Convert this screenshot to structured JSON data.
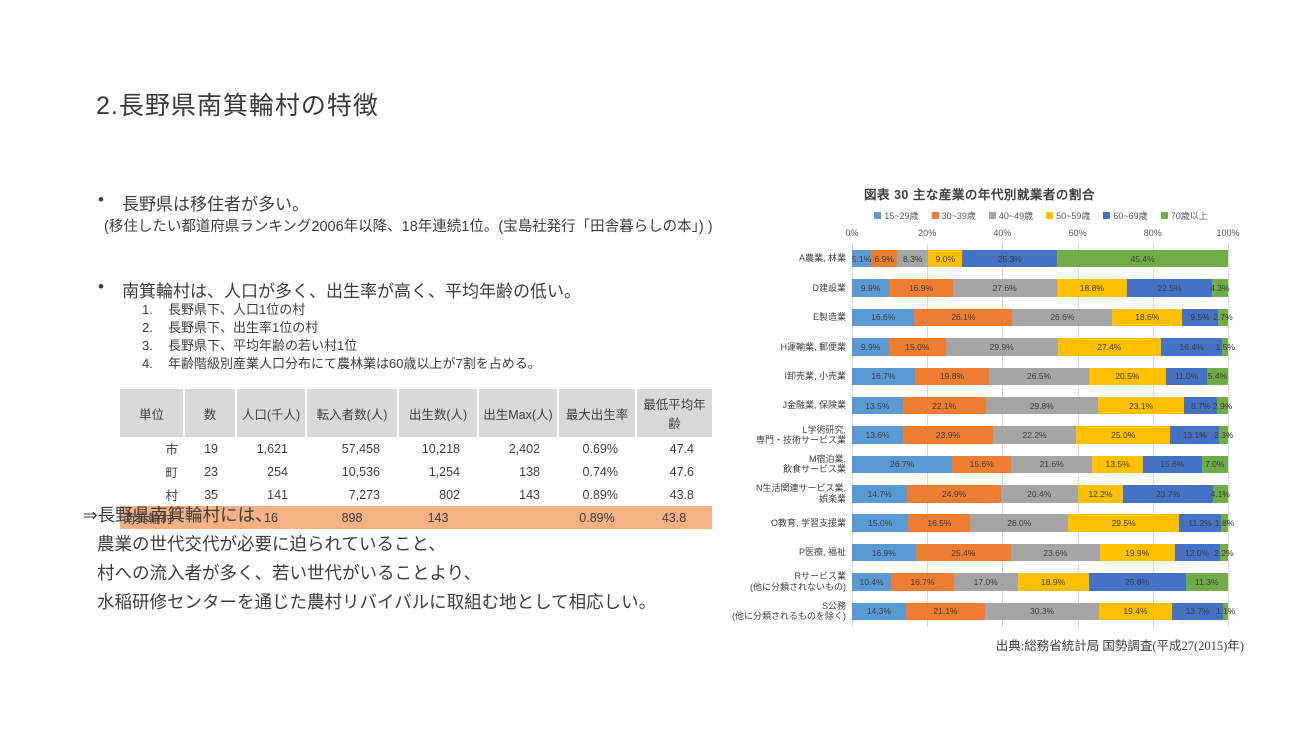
{
  "title": "2.長野県南箕輪村の特徴",
  "bullets": {
    "b1": "長野県は移住者が多い。",
    "b1_note": "(移住したい都道府県ランキング2006年以降、18年連続1位。(宝島社発行「田舎暮らしの本」) )",
    "b2": "南箕輪村は、人口が多く、出生率が高く、平均年齢の低い。",
    "b2_items": [
      "長野県下、人口1位の村",
      "長野県下、出生率1位の村",
      "長野県下、平均年齢の若い村1位",
      "年齢階級別産業人口分布にて農林業は60歳以上が7割を占める。"
    ]
  },
  "table": {
    "headers": [
      "単位",
      "数",
      "人口(千人)",
      "転入者数(人)",
      "出生数(人)",
      "出生Max(人)",
      "最大出生率",
      "最低平均年齢"
    ],
    "rows": [
      [
        "市",
        "19",
        "1,621",
        "57,458",
        "10,218",
        "2,402",
        "0.69%",
        "47.4"
      ],
      [
        "町",
        "23",
        "254",
        "10,536",
        "1,254",
        "138",
        "0.74%",
        "47.6"
      ],
      [
        "村",
        "35",
        "141",
        "7,273",
        "802",
        "143",
        "0.89%",
        "43.8"
      ],
      [
        "南箕輪村",
        "",
        "16",
        "898",
        "143",
        "",
        "0.89%",
        "43.8"
      ]
    ],
    "highlight_row_index": 3,
    "header_bg": "#d9d9d9",
    "highlight_bg": "#f4b183"
  },
  "conclusion": {
    "lead": "⇒長野県南箕輪村には、",
    "lines": [
      "農業の世代交代が必要に迫られていること、",
      "村への流入者が多く、若い世代がいることより、",
      "水稲研修センターを通じた農村リバイバルに取組む地として相応しい。"
    ]
  },
  "chart_data": {
    "type": "bar",
    "orientation": "horizontal",
    "stacked": true,
    "title": "図表 30 主な産業の年代別就業者の割合",
    "source": "出典:総務省統計局 国勢調査(平成27(2015)年)",
    "xlabel": "",
    "ylabel": "",
    "xlim": [
      0,
      100
    ],
    "x_ticks": [
      "0%",
      "20%",
      "40%",
      "60%",
      "80%",
      "100%"
    ],
    "grid": true,
    "legend_position": "top",
    "categories": [
      "A農業, 林業",
      "D建設業",
      "E製造業",
      "H運輸業, 郵便業",
      "I卸売業, 小売業",
      "J金融業, 保険業",
      "L学術研究,\n専門・技術サービス業",
      "M宿泊業,\n飲食サービス業",
      "N生活関連サービス業,\n娯楽業",
      "O教育, 学習支援業",
      "P医療, 福祉",
      "Rサービス業\n(他に分類されないもの)",
      "S公務\n(他に分類されるものを除く)"
    ],
    "series": [
      {
        "name": "15~29歳",
        "color": "#5b9bd5",
        "values": [
          5.1,
          9.9,
          16.6,
          9.9,
          16.7,
          13.5,
          13.6,
          26.7,
          14.7,
          15.0,
          16.9,
          10.4,
          14.3
        ]
      },
      {
        "name": "30~39歳",
        "color": "#ed7d31",
        "values": [
          6.9,
          16.9,
          26.1,
          15.0,
          19.8,
          22.1,
          23.9,
          15.6,
          24.9,
          16.5,
          25.4,
          16.7,
          21.1
        ]
      },
      {
        "name": "40~49歳",
        "color": "#a5a5a5",
        "values": [
          8.3,
          27.6,
          26.6,
          29.9,
          26.5,
          29.8,
          22.2,
          21.6,
          20.4,
          26.0,
          23.6,
          17.0,
          30.3
        ]
      },
      {
        "name": "50~59歳",
        "color": "#ffc000",
        "values": [
          9.0,
          18.8,
          18.6,
          27.4,
          20.5,
          23.1,
          25.0,
          13.5,
          12.2,
          29.5,
          19.9,
          18.9,
          19.4
        ]
      },
      {
        "name": "60~69歳",
        "color": "#4472c4",
        "values": [
          25.3,
          22.5,
          9.5,
          16.4,
          11.0,
          8.7,
          13.1,
          15.6,
          23.7,
          11.2,
          12.0,
          25.8,
          13.7
        ]
      },
      {
        "name": "70歳以上",
        "color": "#70ad47",
        "values": [
          45.4,
          4.3,
          2.7,
          1.5,
          5.4,
          2.9,
          2.3,
          7.0,
          4.1,
          1.8,
          2.2,
          11.3,
          1.1
        ]
      }
    ]
  }
}
